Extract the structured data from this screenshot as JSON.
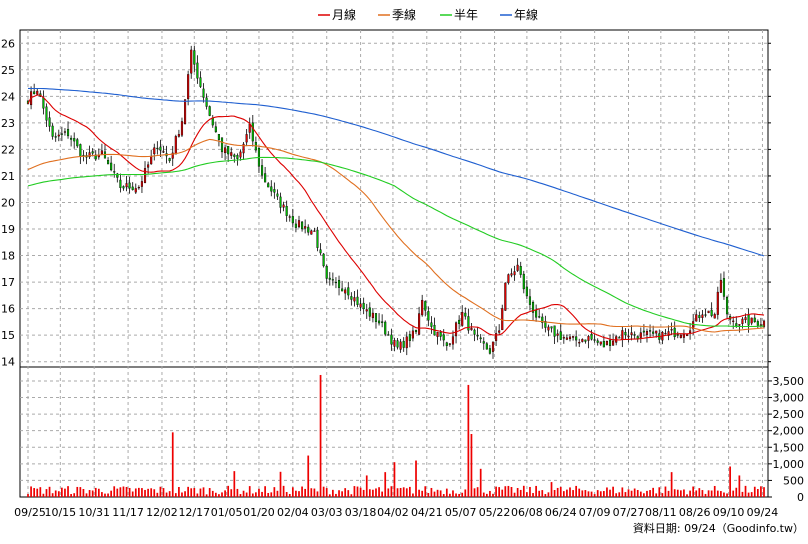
{
  "chart_data": {
    "type": "candlestick",
    "legend": [
      {
        "name": "月線",
        "color": "#dd0000"
      },
      {
        "name": "季線",
        "color": "#e07020"
      },
      {
        "name": "半年",
        "color": "#22cc22"
      },
      {
        "name": "年線",
        "color": "#1f5fd0"
      }
    ],
    "colors": {
      "up": "#e00000",
      "down": "#00bb00",
      "volume": "#ee0000"
    },
    "price_axis": {
      "min": 13.8,
      "max": 26.5,
      "ticks": [
        14,
        15,
        16,
        17,
        18,
        19,
        20,
        21,
        22,
        23,
        24,
        25,
        26
      ]
    },
    "volume_axis": {
      "min": 0,
      "max": 3800,
      "ticks": [
        0,
        500,
        1000,
        1500,
        2000,
        2500,
        3000,
        3500
      ],
      "tick_labels": [
        "0",
        "500",
        "1,000",
        "1,500",
        "2,000",
        "2,500",
        "3,000",
        "3,500"
      ]
    },
    "x_labels": [
      "09/25",
      "10/15",
      "10/31",
      "11/17",
      "12/02",
      "12/17",
      "01/05",
      "01/20",
      "02/04",
      "03/03",
      "03/18",
      "04/02",
      "04/21",
      "05/07",
      "05/22",
      "06/08",
      "06/24",
      "07/09",
      "07/27",
      "08/11",
      "08/26",
      "09/10",
      "09/24"
    ],
    "x_positions": [
      0,
      10.5,
      21.5,
      32.5,
      43.5,
      54,
      64.5,
      75,
      86,
      97,
      108,
      118.5,
      129.5,
      140.5,
      151.5,
      162,
      173,
      184,
      195,
      205.5,
      216.5,
      227.5,
      238.5
    ],
    "close_anchors": [
      [
        0,
        23.9
      ],
      [
        3,
        24.3
      ],
      [
        8,
        22.4
      ],
      [
        13,
        22.6
      ],
      [
        18,
        21.7
      ],
      [
        24,
        21.8
      ],
      [
        30,
        20.6
      ],
      [
        36,
        20.6
      ],
      [
        42,
        22.2
      ],
      [
        46,
        21.6
      ],
      [
        50,
        23.1
      ],
      [
        53,
        25.6
      ],
      [
        56,
        24.4
      ],
      [
        59,
        23.3
      ],
      [
        63,
        22.0
      ],
      [
        68,
        21.6
      ],
      [
        72,
        22.8
      ],
      [
        76,
        21.0
      ],
      [
        81,
        20.1
      ],
      [
        87,
        19.2
      ],
      [
        93,
        18.9
      ],
      [
        97,
        17.0
      ],
      [
        103,
        16.8
      ],
      [
        108,
        16.1
      ],
      [
        114,
        15.5
      ],
      [
        120,
        14.5
      ],
      [
        126,
        15.1
      ],
      [
        128,
        16.4
      ],
      [
        131,
        15.3
      ],
      [
        136,
        14.6
      ],
      [
        141,
        15.8
      ],
      [
        145,
        14.9
      ],
      [
        150,
        14.4
      ],
      [
        153,
        15.2
      ],
      [
        155,
        17.0
      ],
      [
        159,
        17.6
      ],
      [
        162,
        16.4
      ],
      [
        167,
        15.3
      ],
      [
        172,
        15.0
      ],
      [
        177,
        14.8
      ],
      [
        182,
        14.9
      ],
      [
        187,
        14.6
      ],
      [
        193,
        15.1
      ],
      [
        198,
        15.0
      ],
      [
        205,
        15.0
      ],
      [
        210,
        15.1
      ],
      [
        214,
        15.2
      ],
      [
        219,
        15.9
      ],
      [
        223,
        15.8
      ],
      [
        225,
        17.1
      ],
      [
        227,
        15.7
      ],
      [
        230,
        15.5
      ]
    ],
    "volume_spikes": [
      [
        47,
        1950
      ],
      [
        67,
        780
      ],
      [
        82,
        760
      ],
      [
        91,
        1250
      ],
      [
        95,
        3680
      ],
      [
        110,
        650
      ],
      [
        116,
        750
      ],
      [
        119,
        1050
      ],
      [
        126,
        1100
      ],
      [
        143,
        3380
      ],
      [
        144,
        1900
      ],
      [
        147,
        850
      ],
      [
        170,
        450
      ],
      [
        209,
        750
      ],
      [
        228,
        920
      ],
      [
        231,
        650
      ]
    ],
    "source_note": "資料日期: 09/24（Goodinfo.tw）"
  }
}
